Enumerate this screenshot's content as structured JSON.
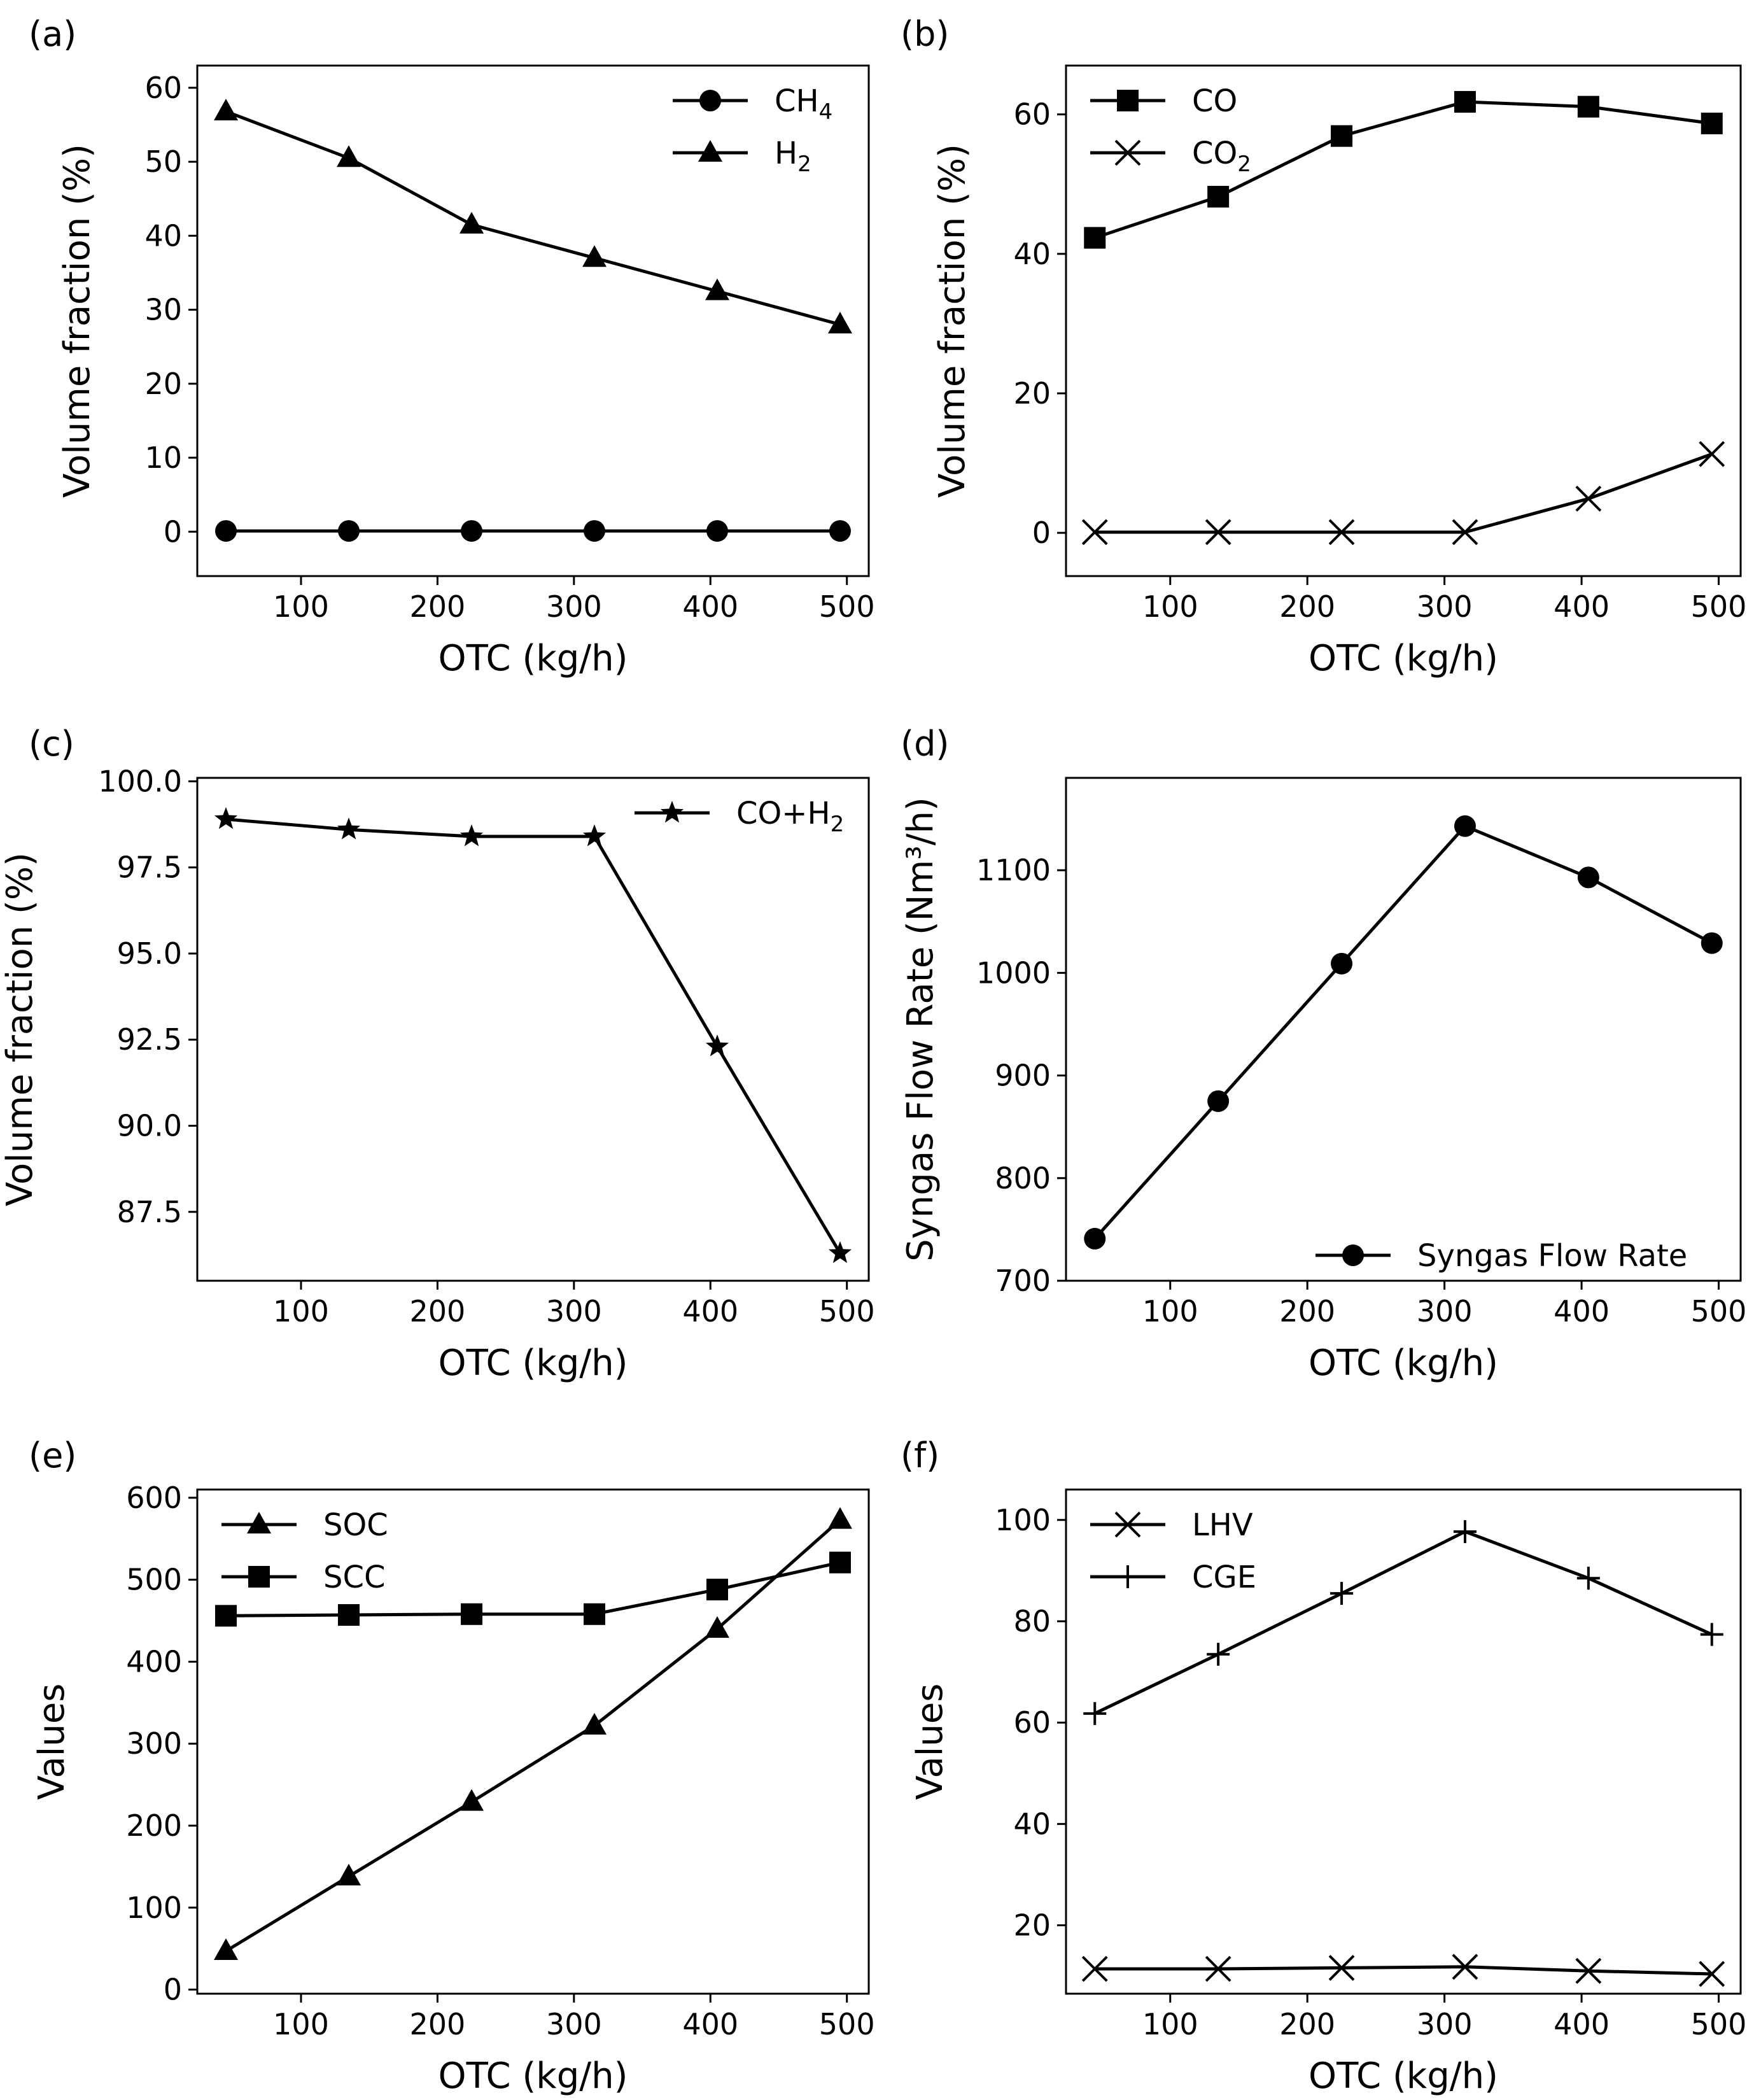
{
  "chart_data": [
    {
      "panel_label": "(a)",
      "type": "line",
      "xlabel": "OTC (kg/h)",
      "ylabel": "Volume fraction (%)",
      "xlim": [
        24,
        516
      ],
      "ylim": [
        -6,
        63
      ],
      "xticks": [
        100,
        200,
        300,
        400,
        500
      ],
      "yticks": [
        0,
        10,
        20,
        30,
        40,
        50,
        60
      ],
      "ytick_labels": [
        "0",
        "10",
        "20",
        "30",
        "40",
        "50",
        "60"
      ],
      "legend_loc": "upper right",
      "x": [
        45,
        135,
        225,
        315,
        405,
        495
      ],
      "series": [
        {
          "name": "CH",
          "sub": "4",
          "marker": "circle",
          "values": [
            0.1,
            0.1,
            0.1,
            0.1,
            0.1,
            0.1
          ]
        },
        {
          "name": "H",
          "sub": "2",
          "marker": "triangle",
          "values": [
            56.8,
            50.5,
            41.5,
            37.0,
            32.5,
            28.0
          ]
        }
      ]
    },
    {
      "panel_label": "(b)",
      "type": "line",
      "xlabel": "OTC (kg/h)",
      "ylabel": "Volume fraction (%)",
      "xlim": [
        24,
        516
      ],
      "ylim": [
        -6.2,
        67
      ],
      "xticks": [
        100,
        200,
        300,
        400,
        500
      ],
      "yticks": [
        0,
        20,
        40,
        60
      ],
      "ytick_labels": [
        "0",
        "20",
        "40",
        "60"
      ],
      "legend_loc": "upper left",
      "x": [
        45,
        135,
        225,
        315,
        405,
        495
      ],
      "series": [
        {
          "name": "CO",
          "sub": "",
          "marker": "square",
          "values": [
            42.3,
            48.2,
            56.9,
            61.8,
            61.1,
            58.7
          ]
        },
        {
          "name": "CO",
          "sub": "2",
          "marker": "x",
          "values": [
            0.1,
            0.1,
            0.1,
            0.1,
            4.9,
            11.3
          ]
        }
      ]
    },
    {
      "panel_label": "(c)",
      "type": "line",
      "xlabel": "OTC (kg/h)",
      "ylabel": "Volume fraction (%)",
      "xlim": [
        24,
        516
      ],
      "ylim": [
        85.5,
        100.1
      ],
      "xticks": [
        100,
        200,
        300,
        400,
        500
      ],
      "yticks": [
        87.5,
        90,
        92.5,
        95,
        97.5,
        100
      ],
      "ytick_labels": [
        "87.5",
        "90.0",
        "92.5",
        "95.0",
        "97.5",
        "100.0"
      ],
      "legend_loc": "upper right",
      "x": [
        45,
        135,
        225,
        315,
        405,
        495
      ],
      "series": [
        {
          "name": "CO+H",
          "sub": "2",
          "marker": "star",
          "values": [
            98.9,
            98.6,
            98.4,
            98.4,
            92.3,
            86.3
          ]
        }
      ]
    },
    {
      "panel_label": "(d)",
      "type": "line",
      "xlabel": "OTC (kg/h)",
      "ylabel": "Syngas Flow Rate (Nm³/h)",
      "xlim": [
        24,
        516
      ],
      "ylim": [
        700,
        1190
      ],
      "xticks": [
        100,
        200,
        300,
        400,
        500
      ],
      "yticks": [
        700,
        800,
        900,
        1000,
        1100
      ],
      "ytick_labels": [
        "700",
        "800",
        "900",
        "1000",
        "1100"
      ],
      "legend_loc": "lower right",
      "x": [
        45,
        135,
        225,
        315,
        405,
        495
      ],
      "series": [
        {
          "name": "Syngas Flow Rate",
          "sub": "",
          "marker": "circle",
          "values": [
            741,
            875,
            1009,
            1143,
            1093,
            1029
          ]
        }
      ]
    },
    {
      "panel_label": "(e)",
      "type": "line",
      "xlabel": "OTC (kg/h)",
      "ylabel": "Values",
      "xlim": [
        24,
        516
      ],
      "ylim": [
        -5,
        610
      ],
      "xticks": [
        100,
        200,
        300,
        400,
        500
      ],
      "yticks": [
        0,
        100,
        200,
        300,
        400,
        500,
        600
      ],
      "ytick_labels": [
        "0",
        "100",
        "200",
        "300",
        "400",
        "500",
        "600"
      ],
      "legend_loc": "upper left",
      "x": [
        45,
        135,
        225,
        315,
        405,
        495
      ],
      "series": [
        {
          "name": "SOC",
          "sub": "",
          "marker": "triangle",
          "values": [
            47,
            138,
            229,
            322,
            440,
            573
          ]
        },
        {
          "name": "SCC",
          "sub": "",
          "marker": "square",
          "values": [
            456,
            457,
            458,
            458,
            488,
            521
          ]
        }
      ]
    },
    {
      "panel_label": "(f)",
      "type": "line",
      "xlabel": "OTC (kg/h)",
      "ylabel": "Values",
      "xlim": [
        24,
        516
      ],
      "ylim": [
        6.5,
        106
      ],
      "xticks": [
        100,
        200,
        300,
        400,
        500
      ],
      "yticks": [
        20,
        40,
        60,
        80,
        100
      ],
      "ytick_labels": [
        "20",
        "40",
        "60",
        "80",
        "100"
      ],
      "legend_loc": "upper left",
      "x": [
        45,
        135,
        225,
        315,
        405,
        495
      ],
      "series": [
        {
          "name": "LHV",
          "sub": "",
          "marker": "x",
          "values": [
            11.4,
            11.4,
            11.6,
            11.8,
            11.0,
            10.4
          ]
        },
        {
          "name": "CGE",
          "sub": "",
          "marker": "plus",
          "values": [
            61.8,
            73.5,
            85.5,
            97.7,
            88.5,
            77.4
          ]
        }
      ]
    }
  ]
}
